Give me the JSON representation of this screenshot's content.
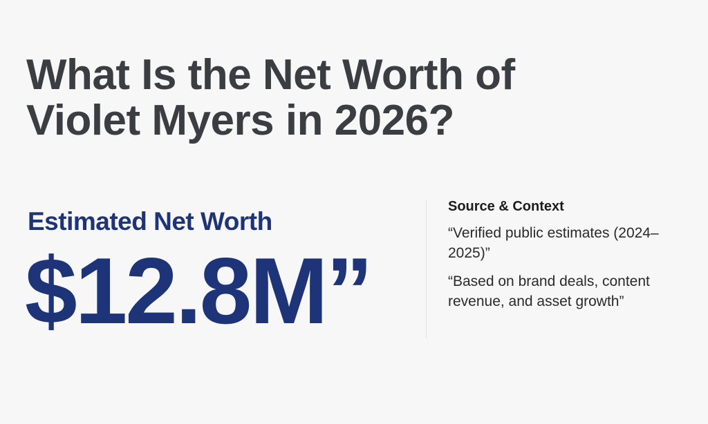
{
  "title": {
    "line1": "What Is the Net Worth of",
    "line2": "Violet Myers in 2026?"
  },
  "estimate": {
    "label": "Estimated Net Worth",
    "value": "$12.8M”"
  },
  "source": {
    "heading": "Source & Context",
    "items": [
      "“Verified public estimates (2024–2025)”",
      "“Based on brand deals, content revenue, and asset growth”"
    ]
  },
  "colors": {
    "accent": "#1d3479",
    "title": "#3a3d41",
    "background": "#f7f7f7"
  }
}
